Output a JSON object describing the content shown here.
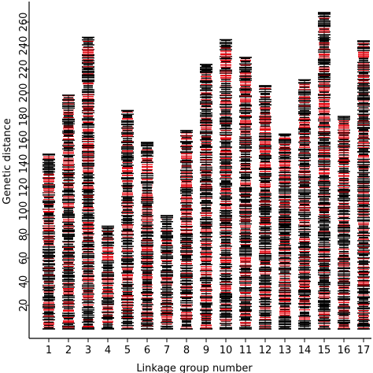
{
  "chart_data": {
    "type": "linkage-map",
    "xlabel": "Linkage group number",
    "ylabel": "Genetic distance",
    "ylim": [
      0,
      270
    ],
    "y_ticks": [
      20,
      40,
      60,
      80,
      100,
      120,
      140,
      160,
      180,
      200,
      220,
      240,
      260
    ],
    "categories": [
      "1",
      "2",
      "3",
      "4",
      "5",
      "6",
      "7",
      "8",
      "9",
      "10",
      "11",
      "12",
      "13",
      "14",
      "15",
      "16",
      "17"
    ],
    "groups": [
      {
        "name": "1",
        "length": 148
      },
      {
        "name": "2",
        "length": 198
      },
      {
        "name": "3",
        "length": 247
      },
      {
        "name": "4",
        "length": 87
      },
      {
        "name": "5",
        "length": 185
      },
      {
        "name": "6",
        "length": 158
      },
      {
        "name": "7",
        "length": 96
      },
      {
        "name": "8",
        "length": 168
      },
      {
        "name": "9",
        "length": 224
      },
      {
        "name": "10",
        "length": 245
      },
      {
        "name": "11",
        "length": 230
      },
      {
        "name": "12",
        "length": 206
      },
      {
        "name": "13",
        "length": 165
      },
      {
        "name": "14",
        "length": 211
      },
      {
        "name": "15",
        "length": 268
      },
      {
        "name": "16",
        "length": 180
      },
      {
        "name": "17",
        "length": 244
      }
    ],
    "marker_colors": {
      "black": "#000000",
      "red": "#e8000b"
    },
    "grid": false,
    "legend": "none"
  }
}
